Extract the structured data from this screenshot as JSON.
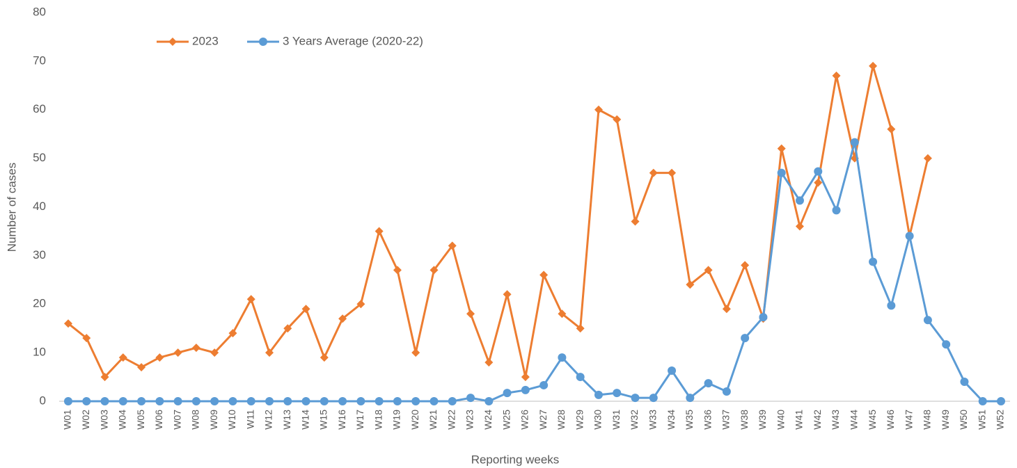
{
  "chart_data": {
    "type": "line",
    "x_label": "Reporting weeks",
    "y_label": "Number of cases",
    "categories": [
      "W01",
      "W02",
      "W03",
      "W04",
      "W05",
      "W06",
      "W07",
      "W08",
      "W09",
      "W10",
      "W11",
      "W12",
      "W13",
      "W14",
      "W15",
      "W16",
      "W17",
      "W18",
      "W19",
      "W20",
      "W21",
      "W22",
      "W23",
      "W24",
      "W25",
      "W26",
      "W27",
      "W28",
      "W29",
      "W30",
      "W31",
      "W32",
      "W33",
      "W34",
      "W35",
      "W36",
      "W37",
      "W38",
      "W39",
      "W40",
      "W41",
      "W42",
      "W43",
      "W44",
      "W45",
      "W46",
      "W47",
      "W48",
      "W49",
      "W50",
      "W51",
      "W52"
    ],
    "series": [
      {
        "name": "2023",
        "color": "#ed7d31",
        "marker": "diamond",
        "values": [
          16,
          13,
          5,
          9,
          7,
          9,
          10,
          11,
          10,
          14,
          21,
          10,
          15,
          19,
          9,
          17,
          20,
          35,
          27,
          10,
          27,
          32,
          18,
          8,
          22,
          5,
          26,
          18,
          15,
          60,
          58,
          37,
          47,
          47,
          24,
          27,
          19,
          28,
          17,
          52,
          36,
          45,
          67,
          50,
          69,
          56,
          34,
          50,
          null,
          null,
          null,
          null
        ]
      },
      {
        "name": "3 Years Average (2020-22)",
        "color": "#5b9bd5",
        "marker": "circle",
        "values": [
          0,
          0,
          0,
          0,
          0,
          0,
          0,
          0,
          0,
          0,
          0,
          0,
          0,
          0,
          0,
          0,
          0,
          0,
          0,
          0,
          0,
          0,
          0.7,
          0,
          1.7,
          2.3,
          3.3,
          9,
          5,
          1.3,
          1.7,
          0.7,
          0.7,
          6.3,
          0.7,
          3.7,
          2,
          13,
          17.3,
          47,
          41.3,
          47.3,
          39.3,
          53.3,
          28.7,
          19.7,
          34,
          16.7,
          11.7,
          4,
          0,
          0
        ]
      }
    ],
    "ylim": [
      0,
      80
    ],
    "yticks": [
      0,
      10,
      20,
      30,
      40,
      50,
      60,
      70,
      80
    ],
    "grid": false,
    "legend": "top"
  }
}
